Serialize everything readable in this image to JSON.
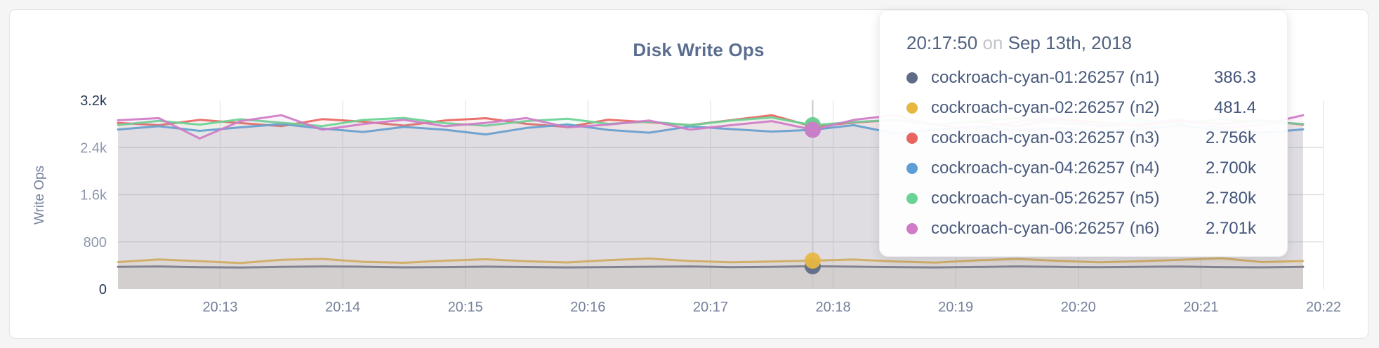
{
  "chart": {
    "title": "Disk Write Ops",
    "y_axis": {
      "title": "Write Ops"
    },
    "colors": {
      "n1": "#5F6C87",
      "n2": "#E8B742",
      "n3": "#E8655F",
      "n4": "#5C9DD6",
      "n5": "#69D395",
      "n6": "#CF7BC7",
      "grid": "#dcdce1",
      "hover_line": "#c8c8cd",
      "axis_label": "#76819B",
      "axis_label_strong": "#2A3B58",
      "axis_label_mid": "#8F98AC",
      "title_color": "#5B6E90"
    }
  },
  "tooltip": {
    "time": "20:17:50",
    "on_word": "on",
    "date": "Sep 13th, 2018",
    "rows": [
      {
        "label": "cockroach-cyan-01:26257 (n1)",
        "value": "386.3",
        "color": "#5F6C87"
      },
      {
        "label": "cockroach-cyan-02:26257 (n2)",
        "value": "481.4",
        "color": "#E8B742"
      },
      {
        "label": "cockroach-cyan-03:26257 (n3)",
        "value": "2.756k",
        "color": "#E8655F"
      },
      {
        "label": "cockroach-cyan-04:26257 (n4)",
        "value": "2.700k",
        "color": "#5C9DD6"
      },
      {
        "label": "cockroach-cyan-05:26257 (n5)",
        "value": "2.780k",
        "color": "#69D395"
      },
      {
        "label": "cockroach-cyan-06:26257 (n6)",
        "value": "2.701k",
        "color": "#CF7BC7"
      }
    ]
  },
  "chart_data": {
    "type": "line",
    "title": "Disk Write Ops",
    "xlabel": "",
    "ylabel": "Write Ops",
    "ylim": [
      0,
      3200
    ],
    "grid": true,
    "legend_position": "tooltip-overlay",
    "y_ticks": [
      {
        "value": 0,
        "label": "0",
        "strong": true
      },
      {
        "value": 800,
        "label": "800",
        "strong": false
      },
      {
        "value": 1600,
        "label": "1.6k",
        "strong": false
      },
      {
        "value": 2400,
        "label": "2.4k",
        "strong": false
      },
      {
        "value": 3200,
        "label": "3.2k",
        "strong": true
      }
    ],
    "x_start_time": "20:12:10",
    "x_end_time": "20:22:00",
    "x_interval_seconds": 20,
    "x_ticks": [
      {
        "seconds": 50,
        "label": "20:13"
      },
      {
        "seconds": 110,
        "label": "20:14"
      },
      {
        "seconds": 170,
        "label": "20:15"
      },
      {
        "seconds": 230,
        "label": "20:16"
      },
      {
        "seconds": 290,
        "label": "20:17"
      },
      {
        "seconds": 350,
        "label": "20:18"
      },
      {
        "seconds": 410,
        "label": "20:19"
      },
      {
        "seconds": 470,
        "label": "20:20"
      },
      {
        "seconds": 530,
        "label": "20:21"
      },
      {
        "seconds": 590,
        "label": "20:22"
      }
    ],
    "hover": {
      "time": "20:17:50",
      "index": 17
    },
    "series": [
      {
        "name": "cockroach-cyan-01:26257 (n1)",
        "color": "#5F6C87",
        "values": [
          378,
          383,
          371,
          366,
          377,
          384,
          379,
          369,
          374,
          381,
          375,
          368,
          373,
          380,
          384,
          372,
          377,
          386.3,
          381,
          373,
          368,
          376,
          383,
          377,
          371,
          378,
          382,
          374,
          369,
          377
        ]
      },
      {
        "name": "cockroach-cyan-02:26257 (n2)",
        "color": "#E8B742",
        "values": [
          458,
          502,
          472,
          441,
          497,
          512,
          463,
          446,
          482,
          506,
          471,
          452,
          491,
          517,
          476,
          455,
          466,
          481.4,
          501,
          469,
          449,
          487,
          512,
          479,
          454,
          471,
          497,
          524,
          458,
          476
        ]
      },
      {
        "name": "cockroach-cyan-03:26257 (n3)",
        "color": "#E8655F",
        "values": [
          2818,
          2779,
          2869,
          2815,
          2762,
          2881,
          2838,
          2772,
          2858,
          2897,
          2801,
          2748,
          2872,
          2828,
          2781,
          2863,
          2948,
          2756,
          2822,
          2868,
          2792,
          2841,
          2763,
          2879,
          2827,
          2771,
          2852,
          2803,
          2861,
          2788
        ]
      },
      {
        "name": "cockroach-cyan-04:26257 (n4)",
        "color": "#5C9DD6",
        "values": [
          2705,
          2761,
          2682,
          2742,
          2798,
          2721,
          2663,
          2749,
          2701,
          2622,
          2733,
          2791,
          2698,
          2652,
          2758,
          2712,
          2671,
          2700,
          2779,
          2641,
          2702,
          2751,
          2688,
          2731,
          2662,
          2719,
          2772,
          2697,
          2649,
          2708
        ]
      },
      {
        "name": "cockroach-cyan-05:26257 (n5)",
        "color": "#69D395",
        "values": [
          2782,
          2851,
          2788,
          2879,
          2821,
          2763,
          2868,
          2902,
          2812,
          2771,
          2849,
          2888,
          2801,
          2838,
          2779,
          2859,
          2908,
          2780,
          2831,
          2869,
          2791,
          2848,
          2898,
          2819,
          2778,
          2861,
          2808,
          2879,
          2842,
          2799
        ]
      },
      {
        "name": "cockroach-cyan-06:26257 (n6)",
        "color": "#CF7BC7",
        "values": [
          2862,
          2898,
          2553,
          2849,
          2948,
          2702,
          2798,
          2869,
          2762,
          2818,
          2899,
          2742,
          2788,
          2858,
          2703,
          2779,
          2848,
          2701,
          2868,
          2948,
          2781,
          2722,
          2839,
          2898,
          2759,
          2801,
          2879,
          2729,
          2788,
          2948
        ]
      }
    ]
  }
}
